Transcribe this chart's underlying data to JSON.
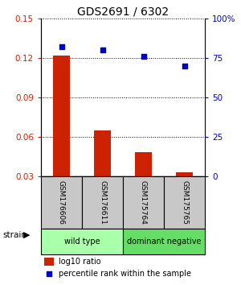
{
  "title": "GDS2691 / 6302",
  "samples": [
    "GSM176606",
    "GSM176611",
    "GSM175764",
    "GSM175765"
  ],
  "log10_ratio": [
    0.122,
    0.065,
    0.048,
    0.033
  ],
  "percentile_rank": [
    82,
    80,
    76,
    70
  ],
  "bar_color": "#cc2200",
  "dot_color": "#0000cc",
  "ylim_left": [
    0.03,
    0.15
  ],
  "ylim_right": [
    0,
    100
  ],
  "yticks_left": [
    0.03,
    0.06,
    0.09,
    0.12,
    0.15
  ],
  "yticks_right": [
    0,
    25,
    50,
    75,
    100
  ],
  "ytick_labels_left": [
    "0.03",
    "0.06",
    "0.09",
    "0.12",
    "0.15"
  ],
  "ytick_labels_right": [
    "0",
    "25",
    "50",
    "75",
    "100%"
  ],
  "groups": [
    {
      "label": "wild type",
      "samples": [
        0,
        1
      ],
      "color": "#aaffaa"
    },
    {
      "label": "dominant negative",
      "samples": [
        2,
        3
      ],
      "color": "#66dd66"
    }
  ],
  "strain_label": "strain",
  "legend_bar_label": "log10 ratio",
  "legend_dot_label": "percentile rank within the sample",
  "label_color_left": "#cc2200",
  "label_color_right": "#0000cc",
  "sample_box_color": "#c8c8c8",
  "bar_width": 0.4
}
